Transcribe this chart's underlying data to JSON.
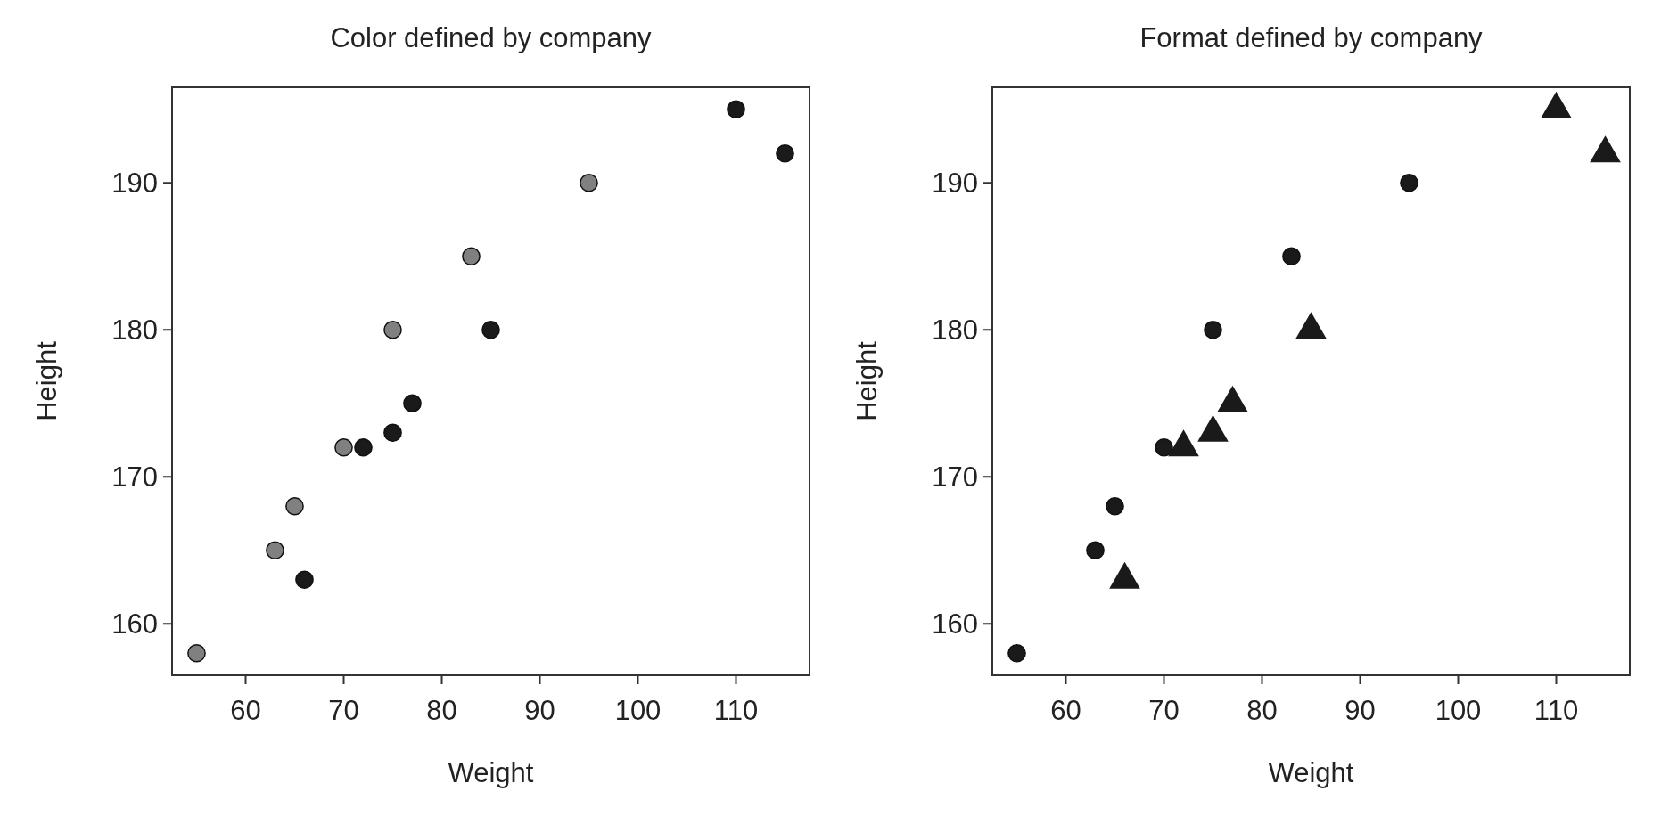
{
  "chart_data": [
    {
      "type": "scatter",
      "title": "Color defined by company",
      "xlabel": "Weight",
      "ylabel": "Height",
      "xlim": [
        52.5,
        117.5
      ],
      "ylim": [
        156.5,
        196.5
      ],
      "xticks": [
        60,
        70,
        80,
        90,
        100,
        110
      ],
      "yticks": [
        160,
        170,
        180,
        190
      ],
      "grid": false,
      "marker": "circle",
      "series": [
        {
          "color": "#808080",
          "x": [
            55,
            63,
            65,
            70,
            75,
            83,
            95
          ],
          "values": [
            158,
            165,
            168,
            172,
            180,
            185,
            190
          ]
        },
        {
          "color": "#1a1a1a",
          "x": [
            66,
            72,
            75,
            77,
            85,
            110,
            115
          ],
          "values": [
            163,
            172,
            173,
            175,
            180,
            195,
            192
          ]
        }
      ]
    },
    {
      "type": "scatter",
      "title": "Format defined by company",
      "xlabel": "Weight",
      "ylabel": "Height",
      "xlim": [
        52.5,
        117.5
      ],
      "ylim": [
        156.5,
        196.5
      ],
      "xticks": [
        60,
        70,
        80,
        90,
        100,
        110
      ],
      "yticks": [
        160,
        170,
        180,
        190
      ],
      "grid": false,
      "series": [
        {
          "color": "#1a1a1a",
          "marker": "circle",
          "x": [
            55,
            63,
            65,
            70,
            75,
            83,
            95
          ],
          "values": [
            158,
            165,
            168,
            172,
            180,
            185,
            190
          ]
        },
        {
          "color": "#1a1a1a",
          "marker": "triangle",
          "x": [
            66,
            72,
            75,
            77,
            85,
            110,
            115
          ],
          "values": [
            163,
            172,
            173,
            175,
            180,
            195,
            192
          ]
        }
      ]
    }
  ]
}
